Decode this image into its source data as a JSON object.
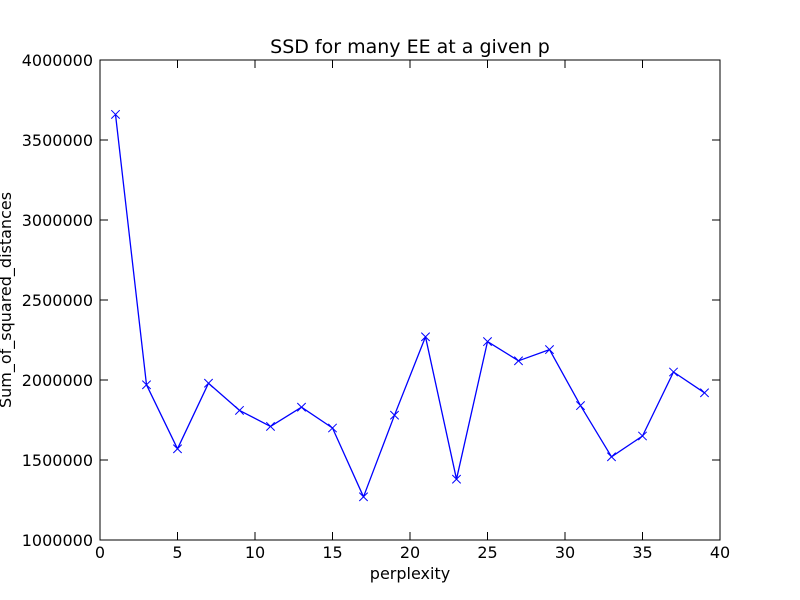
{
  "chart_data": {
    "type": "line",
    "title": "SSD for many EE at a given p",
    "xlabel": "perplexity",
    "ylabel": "Sum_of_squared_distances",
    "xlim": [
      0,
      40
    ],
    "ylim": [
      1000000,
      4000000
    ],
    "xticks": [
      "0",
      "5",
      "10",
      "15",
      "20",
      "25",
      "30",
      "35",
      "40"
    ],
    "yticks": [
      "1000000",
      "1500000",
      "2000000",
      "2500000",
      "3000000",
      "3500000",
      "4000000"
    ],
    "grid": false,
    "legend": "none",
    "series": [
      {
        "color": "#0000ff",
        "marker": "x",
        "x": [
          1,
          3,
          5,
          7,
          9,
          11,
          13,
          15,
          17,
          19,
          21,
          23,
          25,
          27,
          29,
          31,
          33,
          35,
          37,
          39
        ],
        "y": [
          3660000,
          1970000,
          1570000,
          1980000,
          1810000,
          1710000,
          1830000,
          1700000,
          1270000,
          1780000,
          2270000,
          1380000,
          2240000,
          2120000,
          2190000,
          1840000,
          1520000,
          1650000,
          2050000,
          1920000
        ]
      }
    ]
  }
}
